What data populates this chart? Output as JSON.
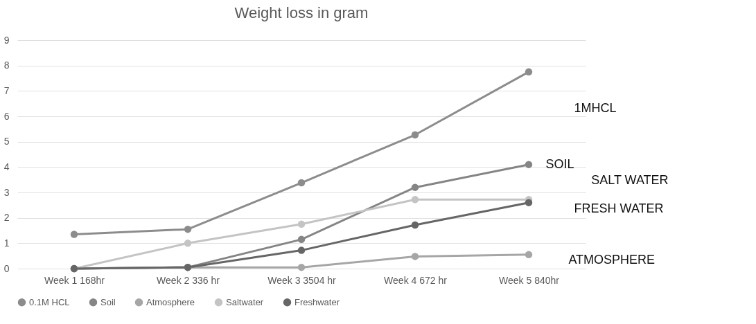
{
  "chart_data": {
    "type": "line",
    "title": "Weight loss in gram",
    "categories": [
      "Week 1   168hr",
      "Week 2 336 hr",
      "Week 3 3504 hr",
      "Week 4 672 hr",
      "Week 5  840hr"
    ],
    "series": [
      {
        "name": "0.1M HCL",
        "color": "#8c8c8c",
        "values": [
          1.35,
          1.55,
          3.38,
          5.27,
          7.75
        ]
      },
      {
        "name": "Soil",
        "color": "#858585",
        "values": [
          0,
          0.05,
          1.15,
          3.2,
          4.1
        ]
      },
      {
        "name": "Atmosphere",
        "color": "#a6a6a6",
        "values": [
          0,
          0.05,
          0.05,
          0.48,
          0.55
        ]
      },
      {
        "name": "Saltwater",
        "color": "#c4c4c4",
        "values": [
          0,
          1.0,
          1.75,
          2.72,
          2.72
        ]
      },
      {
        "name": "Freshwater",
        "color": "#666666",
        "values": [
          0,
          0.05,
          0.72,
          1.72,
          2.6
        ]
      }
    ],
    "ylim": [
      0,
      9
    ],
    "yticks": [
      0,
      1,
      2,
      3,
      4,
      5,
      6,
      7,
      8,
      9
    ],
    "grid": "y",
    "legend": "bottom",
    "marker": "circle",
    "annotations": [
      "1MHCL",
      "SOIL",
      "SALT WATER",
      "FRESH WATER",
      "ATMOSPHERE"
    ]
  }
}
